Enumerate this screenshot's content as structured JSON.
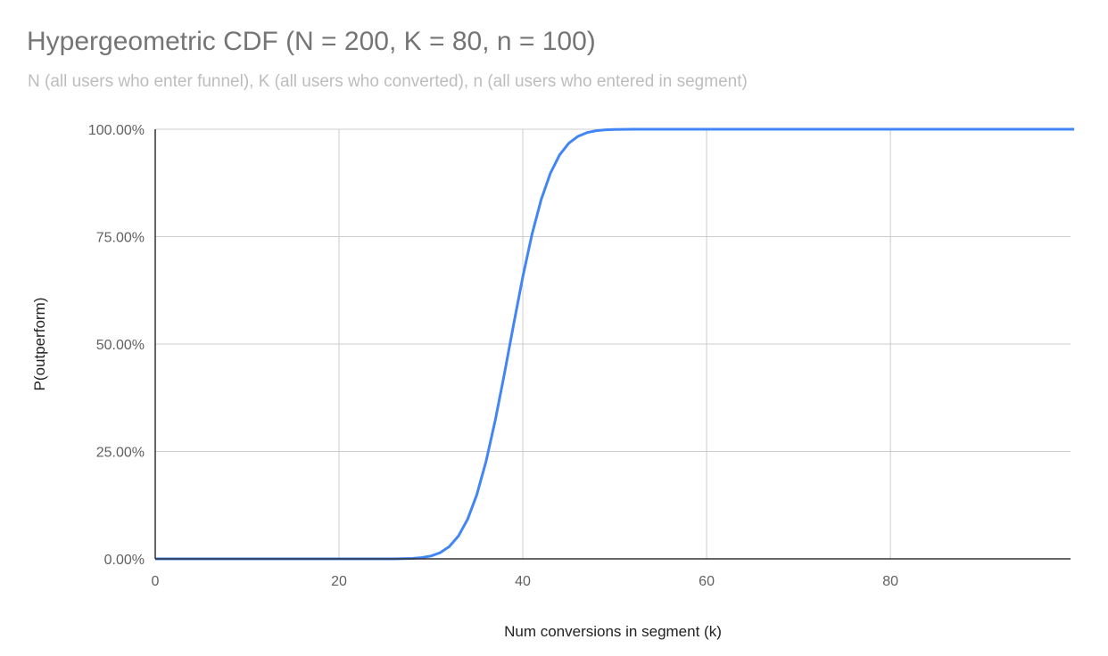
{
  "chart_data": {
    "type": "line",
    "title": "Hypergeometric CDF (N = 200, K = 80, n = 100)",
    "subtitle": "N (all users who enter funnel), K (all users who converted), n (all users who entered in segment)",
    "xlabel": "Num conversions in segment (k)",
    "ylabel": "P(outperform)",
    "xlim": [
      0,
      99.6
    ],
    "ylim": [
      0,
      100
    ],
    "x_ticks": [
      0,
      20,
      40,
      60,
      80
    ],
    "x_tick_labels": [
      "0",
      "20",
      "40",
      "60",
      "80"
    ],
    "y_ticks": [
      0,
      25,
      50,
      75,
      100
    ],
    "y_tick_labels": [
      "0.00%",
      "25.00%",
      "50.00%",
      "75.00%",
      "100.00%"
    ],
    "y_unit": "percent",
    "grid": true,
    "legend": "none",
    "series": [
      {
        "color": "#4285f4",
        "x_start": 0,
        "x_step": 1,
        "values": [
          0,
          0,
          0,
          0,
          0,
          0,
          0,
          0,
          0,
          0,
          0,
          0,
          0,
          0,
          0,
          0,
          0,
          0,
          0,
          0,
          0,
          0,
          0,
          0,
          0,
          0,
          0.01,
          0.04,
          0.11,
          0.28,
          0.66,
          1.43,
          2.86,
          5.33,
          9.24,
          14.98,
          22.69,
          32.24,
          43.13,
          54.58,
          65.67,
          75.55,
          83.64,
          89.76,
          94.02,
          96.74,
          98.35,
          99.23,
          99.66,
          99.86,
          99.95,
          99.98,
          99.99,
          100,
          100,
          100,
          100,
          100,
          100,
          100,
          100,
          100,
          100,
          100,
          100,
          100,
          100,
          100,
          100,
          100,
          100,
          100,
          100,
          100,
          100,
          100,
          100,
          100,
          100,
          100,
          100,
          100,
          100,
          100,
          100,
          100,
          100,
          100,
          100,
          100,
          100,
          100,
          100,
          100,
          100,
          100,
          100,
          100,
          100,
          100,
          100
        ]
      }
    ]
  },
  "colors": {
    "line": "#4285f4",
    "grid": "#cccccc",
    "axis": "#333333"
  }
}
